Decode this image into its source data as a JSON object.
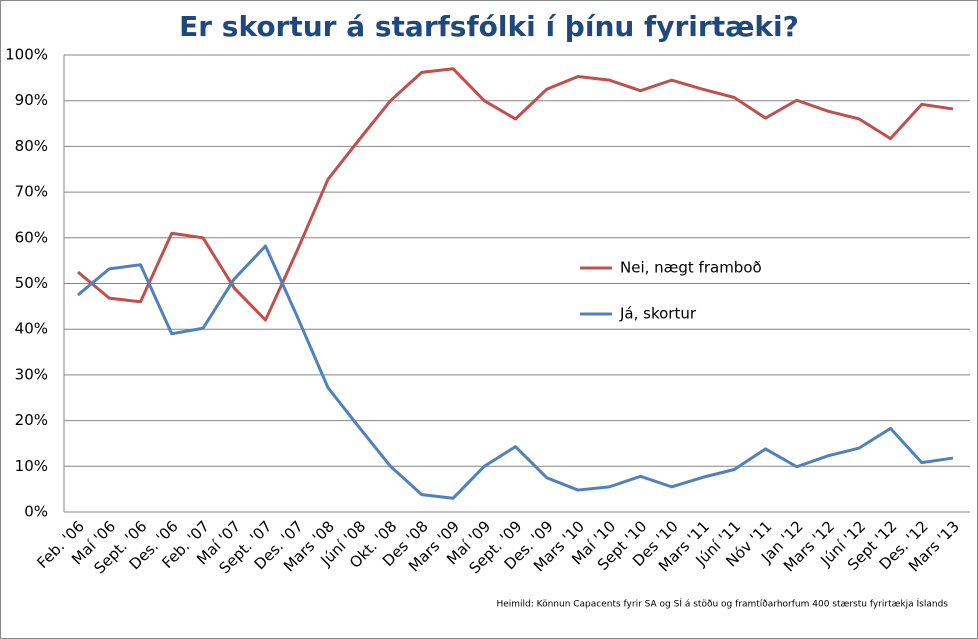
{
  "chart_data": {
    "type": "line",
    "title": "Er skortur á starfsfólki í þínu fyrirtæki?",
    "source": "Heimild: Könnun Capacents fyrir SA og SÍ á stöðu og framtíðarhorfum 400 stærstu fyrirtækja Íslands",
    "categories": [
      "Feb. '06",
      "Maí '06",
      "Sept. '06",
      "Des. '06",
      "Feb. '07",
      "Maí '07",
      "Sept. '07",
      "Des. '07",
      "Mars '08",
      "Júní '08",
      "Okt. '08",
      "Des '08",
      "Mars '09",
      "Maí '09",
      "Sept. '09",
      "Des. '09",
      "Mars '10",
      "Maí '10",
      "Sept '10",
      "Des '10",
      "Mars '11",
      "Júní '11",
      "Nóv '11",
      "Jan '12",
      "Mars '12",
      "Júní '12",
      "Sept '12",
      "Des. '12",
      "Mars '13"
    ],
    "series": [
      {
        "name": "Nei, nægt framboð",
        "color": "#c0504d",
        "values": [
          52.5,
          46.8,
          46,
          61,
          60,
          49,
          42,
          57,
          72.8,
          81.5,
          90,
          96.2,
          97,
          90,
          86,
          92.5,
          95.3,
          94.5,
          92.2,
          94.5,
          92.5,
          90.7,
          86.2,
          90.1,
          87.7,
          86,
          81.7,
          89.2,
          88.2
        ]
      },
      {
        "name": "Já, skortur",
        "color": "#4f81bd",
        "values": [
          47.5,
          53.2,
          54.1,
          39,
          40.2,
          51,
          58.2,
          43,
          27.2,
          18.5,
          10,
          3.8,
          3,
          10,
          14.3,
          7.5,
          4.8,
          5.5,
          7.8,
          5.5,
          7.6,
          9.3,
          13.8,
          9.9,
          12.3,
          14,
          18.3,
          10.8,
          11.8
        ]
      }
    ],
    "ylim": [
      0,
      100
    ],
    "yticks": [
      {
        "value": 0,
        "label": "0%"
      },
      {
        "value": 10,
        "label": "10%"
      },
      {
        "value": 20,
        "label": "20%"
      },
      {
        "value": 30,
        "label": "30%"
      },
      {
        "value": 40,
        "label": "40%"
      },
      {
        "value": 50,
        "label": "50%"
      },
      {
        "value": 60,
        "label": "60%"
      },
      {
        "value": 70,
        "label": "70%"
      },
      {
        "value": 80,
        "label": "80%"
      },
      {
        "value": 90,
        "label": "90%"
      },
      {
        "value": 100,
        "label": "100%"
      }
    ],
    "grid": true
  }
}
